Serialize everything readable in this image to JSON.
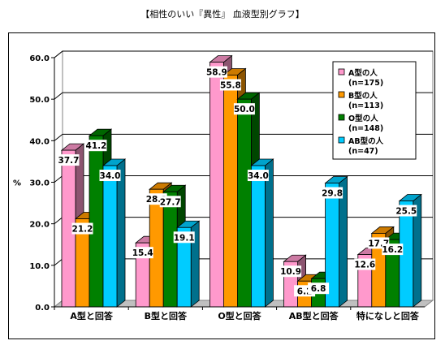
{
  "page": {
    "title": "【相性のいい『異性』 血液型別グラフ】"
  },
  "chart_data": {
    "type": "bar",
    "style": "3d-clustered",
    "title": "【相性のいい『異性』 血液型別グラフ】",
    "ylabel": "%",
    "xlabel": "",
    "ylim": [
      0,
      60
    ],
    "yticks": [
      "0.0",
      "10.0",
      "20.0",
      "30.0",
      "40.0",
      "50.0",
      "60.0"
    ],
    "grid": true,
    "legend_position": "top-right",
    "categories": [
      "A型と回答",
      "B型と回答",
      "O型と回答",
      "AB型と回答",
      "特になしと回答"
    ],
    "series": [
      {
        "name": "A型の人",
        "n_label": "(n=175)",
        "color": "#ff99cc",
        "values": [
          37.7,
          15.4,
          58.9,
          10.9,
          12.6
        ]
      },
      {
        "name": "B型の人",
        "n_label": "(n=113)",
        "color": "#ff9900",
        "values": [
          21.2,
          28.3,
          55.8,
          6.2,
          17.7
        ]
      },
      {
        "name": "O型の人",
        "n_label": "(n=148)",
        "color": "#008000",
        "values": [
          41.2,
          27.7,
          50.0,
          6.8,
          16.2
        ]
      },
      {
        "name": "AB型の人",
        "n_label": "(n=47)",
        "color": "#00ccff",
        "values": [
          34.0,
          19.1,
          34.0,
          29.8,
          25.5
        ]
      }
    ]
  }
}
